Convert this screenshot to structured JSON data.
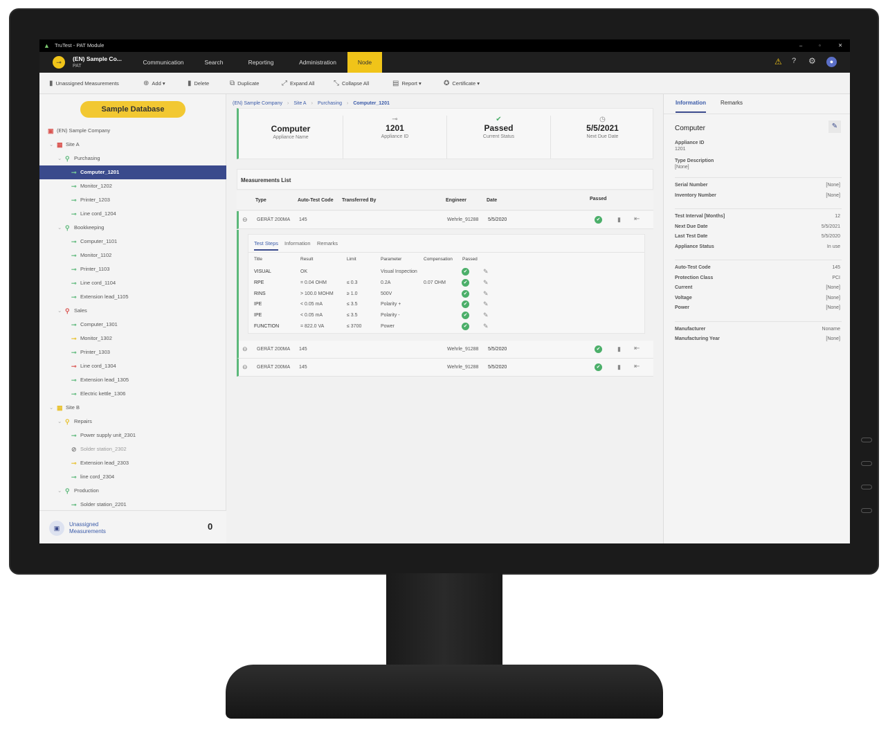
{
  "window": {
    "title": "TruTest - PAT Module",
    "minimize": "–",
    "maximize": "▫",
    "close": "✕"
  },
  "nav": {
    "company": "(EN) Sample Co...",
    "module": "PAT",
    "items": [
      "Communication",
      "Search",
      "Reporting",
      "Administration",
      "Node"
    ],
    "active": "Node",
    "accent": "#f0c419"
  },
  "toolbar": {
    "unassigned": "Unassigned Measurements",
    "add": "Add",
    "delete": "Delete",
    "duplicate": "Duplicate",
    "expand": "Expand All",
    "collapse": "Collapse All",
    "report": "Report",
    "certificate": "Certificate"
  },
  "sidebar": {
    "database": "Sample Database",
    "tree": [
      {
        "label": "(EN) Sample Company",
        "level": 0,
        "icon": "company-icon",
        "color": "#d9534f"
      },
      {
        "label": "Site A",
        "level": 1,
        "icon": "building-icon",
        "color": "#d9534f"
      },
      {
        "label": "Purchasing",
        "level": 2,
        "icon": "location-pin-icon",
        "color": "#5cb87a"
      },
      {
        "label": "Computer_1201",
        "level": 3,
        "icon": "plug-icon",
        "color": "#5cb87a",
        "selected": true
      },
      {
        "label": "Monitor_1202",
        "level": 3,
        "icon": "plug-icon",
        "color": "#5cb87a"
      },
      {
        "label": "Printer_1203",
        "level": 3,
        "icon": "plug-icon",
        "color": "#5cb87a"
      },
      {
        "label": "Line cord_1204",
        "level": 3,
        "icon": "plug-icon",
        "color": "#5cb87a"
      },
      {
        "label": "Bookkeeping",
        "level": 2,
        "icon": "location-pin-icon",
        "color": "#5cb87a"
      },
      {
        "label": "Computer_1101",
        "level": 3,
        "icon": "plug-icon",
        "color": "#5cb87a"
      },
      {
        "label": "Monitor_1102",
        "level": 3,
        "icon": "plug-icon",
        "color": "#5cb87a"
      },
      {
        "label": "Printer_1103",
        "level": 3,
        "icon": "plug-icon",
        "color": "#5cb87a"
      },
      {
        "label": "Line cord_1104",
        "level": 3,
        "icon": "plug-icon",
        "color": "#5cb87a"
      },
      {
        "label": "Extension lead_1105",
        "level": 3,
        "icon": "plug-icon",
        "color": "#5cb87a"
      },
      {
        "label": "Sales",
        "level": 2,
        "icon": "location-pin-icon",
        "color": "#d9534f"
      },
      {
        "label": "Computer_1301",
        "level": 3,
        "icon": "plug-icon",
        "color": "#5cb87a"
      },
      {
        "label": "Monitor_1302",
        "level": 3,
        "icon": "plug-icon",
        "color": "#e8c12e"
      },
      {
        "label": "Printer_1303",
        "level": 3,
        "icon": "plug-icon",
        "color": "#5cb87a"
      },
      {
        "label": "Line cord_1304",
        "level": 3,
        "icon": "plug-icon",
        "color": "#d9534f"
      },
      {
        "label": "Extension lead_1305",
        "level": 3,
        "icon": "plug-icon",
        "color": "#5cb87a"
      },
      {
        "label": "Electric kettle_1306",
        "level": 3,
        "icon": "plug-icon",
        "color": "#5cb87a"
      },
      {
        "label": "Site B",
        "level": 1,
        "icon": "building-icon",
        "color": "#e8c12e"
      },
      {
        "label": "Repairs",
        "level": 2,
        "icon": "location-pin-icon",
        "color": "#e8c12e"
      },
      {
        "label": "Power supply unit_2301",
        "level": 3,
        "icon": "plug-icon",
        "color": "#5cb87a"
      },
      {
        "label": "Solder station_2302",
        "level": 3,
        "icon": "blocked-icon",
        "color": "#888888"
      },
      {
        "label": "Extension lead_2303",
        "level": 3,
        "icon": "plug-icon",
        "color": "#e8c12e"
      },
      {
        "label": "line cord_2304",
        "level": 3,
        "icon": "plug-icon",
        "color": "#5cb87a"
      },
      {
        "label": "Production",
        "level": 2,
        "icon": "location-pin-icon",
        "color": "#5cb87a"
      },
      {
        "label": "Solder station_2201",
        "level": 3,
        "icon": "plug-icon",
        "color": "#5cb87a"
      }
    ],
    "unassigned_label": "Unassigned Measurements",
    "unassigned_count": "0"
  },
  "breadcrumb": [
    "(EN) Sample Company",
    "Site A",
    "Purchasing",
    "Computer_1201"
  ],
  "summary": [
    {
      "value": "Computer",
      "label": "Appliance Name"
    },
    {
      "value": "1201",
      "label": "Appliance ID"
    },
    {
      "value": "Passed",
      "label": "Current Status"
    },
    {
      "value": "5/5/2021",
      "label": "Next Due Date"
    }
  ],
  "measurements": {
    "title": "Measurements List",
    "headers": [
      "Type",
      "Auto-Test Code",
      "Transferred By",
      "Engineer",
      "Date",
      "Passed"
    ],
    "rows": [
      {
        "type": "GERÄT 200MA",
        "code": "145",
        "transferred": "",
        "engineer": "Wehrle_91288",
        "date": "5/5/2020",
        "passed": true
      },
      {
        "type": "GERÄT 200MA",
        "code": "145",
        "transferred": "",
        "engineer": "Wehrle_91288",
        "date": "5/5/2020",
        "passed": true
      },
      {
        "type": "GERÄT 200MA",
        "code": "145",
        "transferred": "",
        "engineer": "Wehrle_91288",
        "date": "5/5/2020",
        "passed": true
      }
    ],
    "detail_tabs": [
      "Test Steps",
      "Information",
      "Remarks"
    ],
    "step_headers": [
      "Title",
      "Result",
      "Limit",
      "Parameter",
      "Compensation",
      "Passed"
    ],
    "steps": [
      [
        "VISUAL",
        "OK",
        "",
        "Visual Inspection",
        ""
      ],
      [
        "RPE",
        "= 0.04 OHM",
        "≤ 0.3",
        "0.2A",
        "0.07 OHM"
      ],
      [
        "RINS",
        "> 100.0 MOHM",
        "≥ 1.0",
        "500V",
        ""
      ],
      [
        "IPE",
        "< 0.05 mA",
        "≤ 3.5",
        "Polarity +",
        ""
      ],
      [
        "IPE",
        "< 0.05 mA",
        "≤ 3.5",
        "Polarity -",
        ""
      ],
      [
        "FUNCTION",
        "= 822.0 VA",
        "≤ 3700",
        "Power",
        ""
      ]
    ]
  },
  "info": {
    "tabs": [
      "Information",
      "Remarks"
    ],
    "title": "Computer",
    "appliance_id_label": "Appliance ID",
    "appliance_id": "1201",
    "type_desc_label": "Type Description",
    "type_desc": "[None]",
    "groups": [
      [
        [
          "Serial Number",
          "[None]"
        ],
        [
          "Inventory Number",
          "[None]"
        ]
      ],
      [
        [
          "Test Interval [Months]",
          "12"
        ],
        [
          "Next Due Date",
          "5/5/2021"
        ],
        [
          "Last Test Date",
          "5/5/2020"
        ],
        [
          "Appliance Status",
          "In use"
        ]
      ],
      [
        [
          "Auto-Test Code",
          "145"
        ],
        [
          "Protection Class",
          "PCI"
        ],
        [
          "Current",
          "[None]"
        ],
        [
          "Voltage",
          "[None]"
        ],
        [
          "Power",
          "[None]"
        ]
      ],
      [
        [
          "Manufacturer",
          "Noname"
        ],
        [
          "Manufacturing Year",
          "[None]"
        ]
      ]
    ]
  }
}
